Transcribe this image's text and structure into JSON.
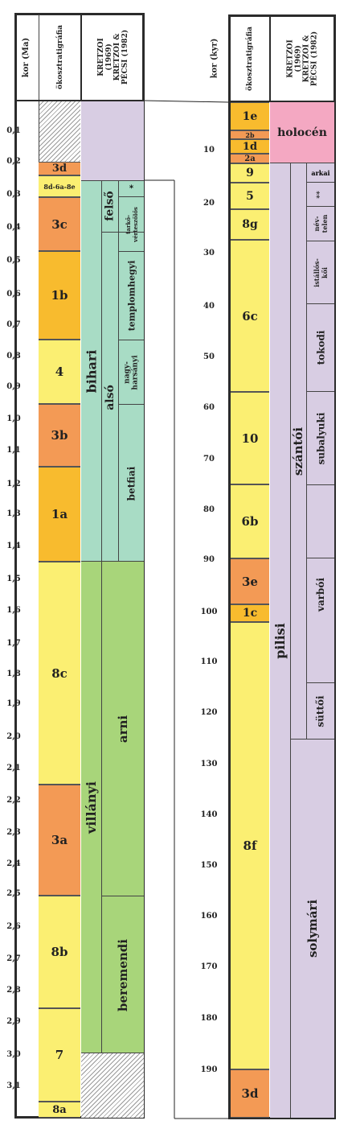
{
  "colors": {
    "orange": "#f39a55",
    "gold": "#f8bb2e",
    "yellow": "#fbef72",
    "lilac": "#d8cde3",
    "mint": "#a8dcc5",
    "green": "#a8d57a",
    "pink": "#f4a8c2",
    "hatch": "#888888"
  },
  "left": {
    "headers": {
      "kor": "kor (Ma)",
      "oko": "ökosztratigráfia",
      "kretzoi": "KRETZOI (1969) KRETZOI & PÉCSI (1982)"
    },
    "ticks": [
      "0,1",
      "0,2",
      "0,3",
      "0,4",
      "0,5",
      "0,6",
      "0,7",
      "0,8",
      "0,9",
      "1,0",
      "1,1",
      "1,2",
      "1,3",
      "1,4",
      "1,5",
      "1,6",
      "1,7",
      "1,8",
      "1,9",
      "2,0",
      "2,1",
      "2,2",
      "2,3",
      "2,4",
      "2,5",
      "2,6",
      "2,7",
      "2,8",
      "2,9",
      "3,0",
      "3,1"
    ],
    "eco": [
      "3d",
      "8d-6a-8e",
      "3c",
      "1b",
      "4",
      "3b",
      "1a",
      "8c",
      "3a",
      "8b",
      "7",
      "8a"
    ],
    "stages": {
      "bihari": "bihari",
      "villanyi": "villányi",
      "felso": "felső",
      "also": "alsó",
      "arni": "arni",
      "beremendi": "beremendi",
      "tarko": "tarkő-vérteszőlős",
      "templom": "templomhegyi",
      "nagyharsanyi": "nagy-harsányi",
      "betfiai": "betfiai",
      "star": "*"
    }
  },
  "right": {
    "headers": {
      "kor": "kor (kyr)",
      "oko": "ökosztratigráfia",
      "kretzoi": "KRETZOI (1969) KRETZOI & PÉCSI (1982)"
    },
    "ticks": [
      "10",
      "20",
      "30",
      "40",
      "50",
      "60",
      "70",
      "80",
      "90",
      "100",
      "110",
      "120",
      "130",
      "140",
      "150",
      "160",
      "170",
      "180",
      "190"
    ],
    "eco": [
      "1e",
      "2b",
      "1d",
      "2a",
      "9",
      "5",
      "8g",
      "6c",
      "10",
      "6b",
      "3e",
      "1c",
      "8f",
      "3d"
    ],
    "stages": {
      "holocen": "holocén",
      "pilisi": "pilisi",
      "szantoi": "szántói",
      "solymari": "solymári",
      "arkai": "arkai",
      "stars": "**",
      "nevtelen": "név-telen",
      "istallos": "istállós-kői",
      "tokodi": "tokodi",
      "subalyuki": "subalyuki",
      "varboi": "varbói",
      "suttoi": "süttői"
    }
  }
}
